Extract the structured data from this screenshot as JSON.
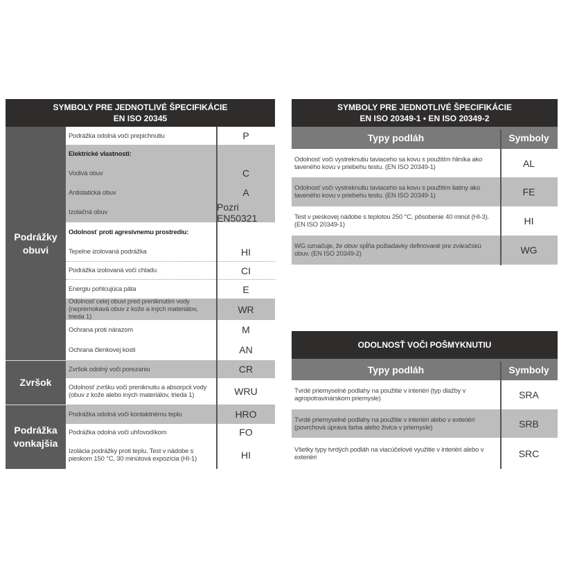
{
  "left": {
    "title_line1": "SYMBOLY PRE JEDNOTLIVÉ ŠPECIFIKÁCIE",
    "title_line2": "EN ISO 20345",
    "sections": [
      "Podrážky obuvi",
      "Zvršok",
      "Podrážka vonkajšia"
    ],
    "rows": [
      {
        "desc": "Podrážka odolná voči prepichnutiu",
        "sym": "P"
      },
      {
        "desc": "Elektrické vlastnosti:",
        "sym": ""
      },
      {
        "desc": "Vodivá obuv",
        "sym": "C"
      },
      {
        "desc": "Antistatická obuv",
        "sym": "A"
      },
      {
        "desc": "Izolačná obuv",
        "sym": "Pozri EN50321"
      },
      {
        "desc": "Odolnosť proti agresívnemu prostrediu:",
        "sym": ""
      },
      {
        "desc": "Tepelne izolovaná podrážka",
        "sym": "HI"
      },
      {
        "desc": "Podrážka izolovaná voči chladu",
        "sym": "CI"
      },
      {
        "desc": "Energiu pohlcujúca päta",
        "sym": "E"
      },
      {
        "desc": "Odolnosť celej obuvi pred preniknutím vody (nepremokavá obuv z kože a iných materiálov, trieda 1)",
        "sym": "WR"
      },
      {
        "desc": "Ochrana proti nárazom",
        "sym": "M"
      },
      {
        "desc": "Ochrana členkovej kosti",
        "sym": "AN"
      },
      {
        "desc": "Zvršok odolný voči porezaniu",
        "sym": "CR"
      },
      {
        "desc": "Odolnosť zvršku voči preniknutiu a absorpcii vody (obuv z kože alebo iných materiálov, trieda 1)",
        "sym": "WRU"
      },
      {
        "desc": "Podrážka odolná voči kontaktnému teplu",
        "sym": "HRO"
      },
      {
        "desc": "Podrážka odolná voči uhľovodíkom",
        "sym": "FO"
      },
      {
        "desc": "Izolácia podrážky proti teplu. Test v nádobe s pieskom 150 °C, 30 minútová expozícia (HI-1)",
        "sym": "HI"
      }
    ]
  },
  "right1": {
    "title_line1": "SYMBOLY PRE JEDNOTLIVÉ ŠPECIFIKÁCIE",
    "title_line2": "EN ISO 20349-1 • EN ISO 20349-2",
    "col1": "Typy podláh",
    "col2": "Symboly",
    "rows": [
      {
        "desc": "Odolnosť voči vystreknutiu taviaceho sa kovu s použitím hliníka ako taveného kovu v priebehu testu. (EN ISO 20349-1)",
        "sym": "AL"
      },
      {
        "desc": "Odolnosť voči vystreknutiu taviaceho sa kovu s použitím liatiny ako taveného kovu v priebehu testu. (EN ISO 20349-1)",
        "sym": "FE"
      },
      {
        "desc": "Test v pieskovej nádobe s teplotou 250 °C, pôsobenie 40 minút (HI-3). (EN ISO 20349-1)",
        "sym": "HI"
      },
      {
        "desc": "WG označuje, že obuv spĺňa požiadavky definované pre zváračskú obuv. (EN ISO 20349-2)",
        "sym": "WG"
      }
    ]
  },
  "right2": {
    "title": "ODOLNOSŤ VOČI POŠMYKNUTIU",
    "col1": "Typy podláh",
    "col2": "Symboly",
    "rows": [
      {
        "desc": "Tvrdé priemyselné podlahy na použitie v interiéri (typ dlažby v agropotravinárskom priemysle)",
        "sym": "SRA"
      },
      {
        "desc": "Tvrdé priemyselné podlahy na použitie v interiéri alebo v exteriéri (povrchová úprava farba alebo živica v priemysle)",
        "sym": "SRB"
      },
      {
        "desc": "Všetky typy tvrdých podláh na viacúčelové využitie v interiéri alebo v exteriéri",
        "sym": "SRC"
      }
    ]
  }
}
